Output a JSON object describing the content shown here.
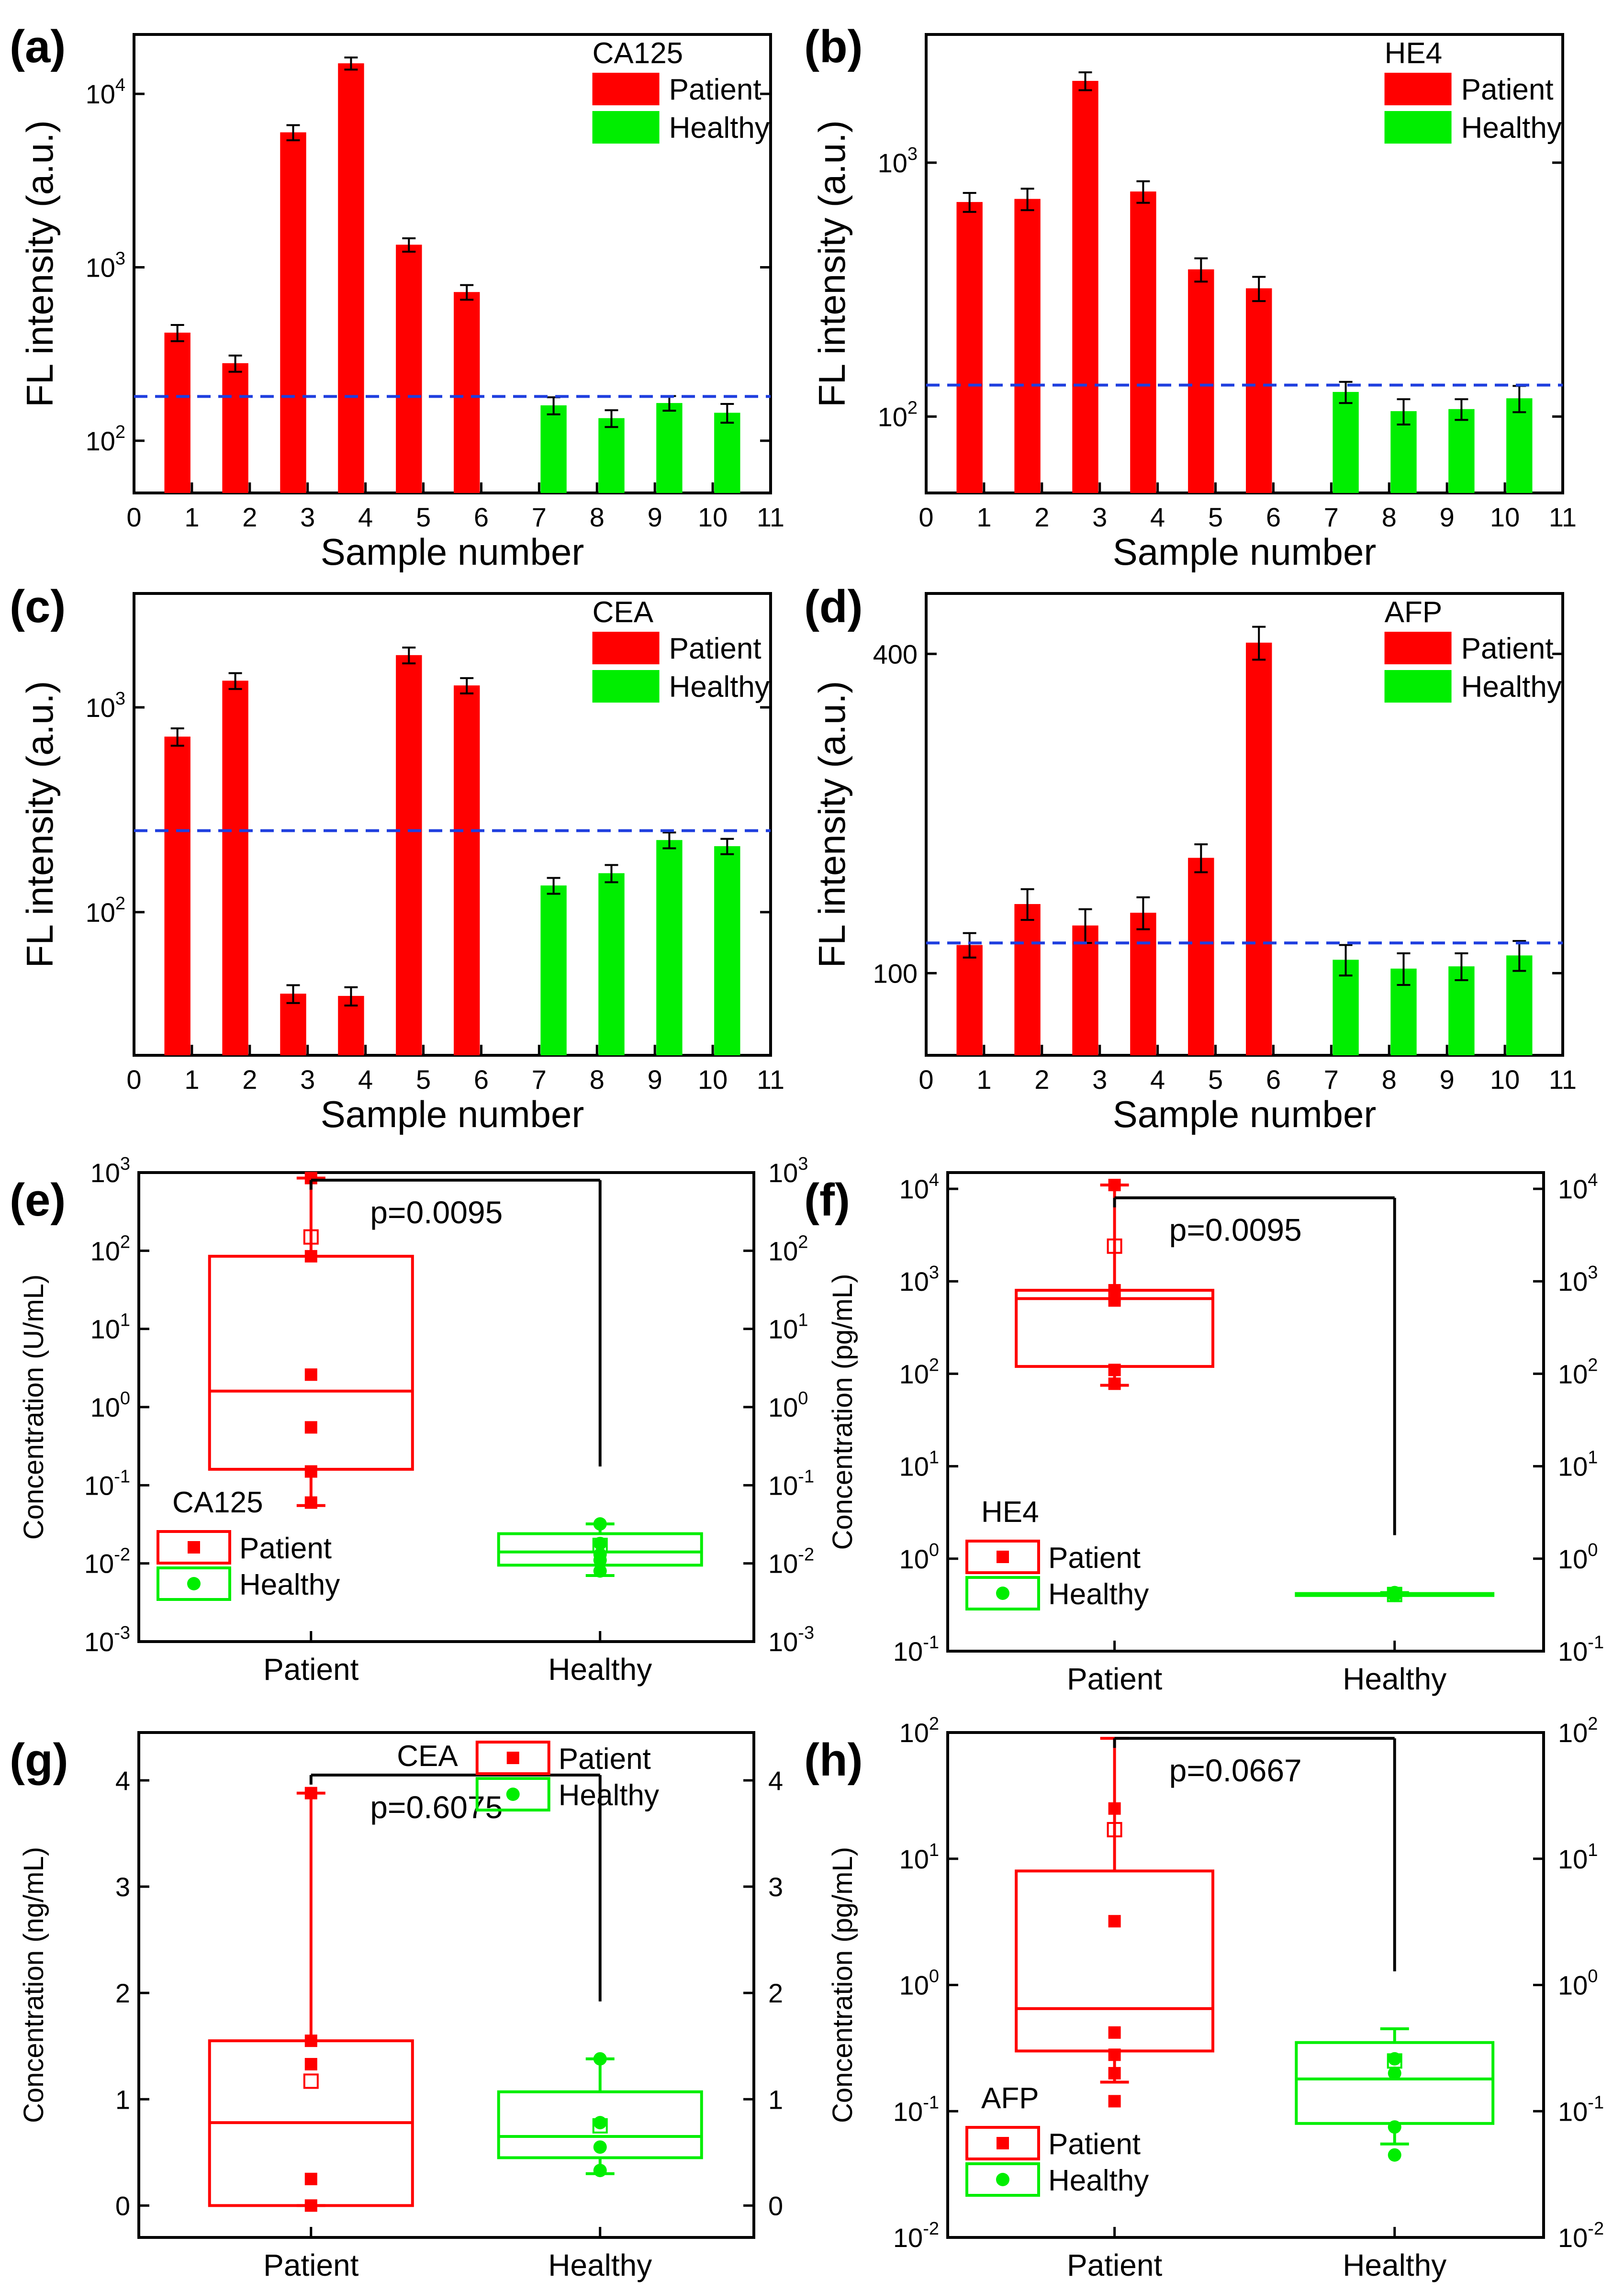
{
  "colors": {
    "patient": "#ff0000",
    "healthy": "#00ee00",
    "cutoff": "#1f3fdf",
    "axis": "#000000"
  },
  "chart_data": [
    {
      "panel": "(a)",
      "type": "bar",
      "scale": "log",
      "legend_title": "CA125",
      "legend": [
        "Patient",
        "Healthy"
      ],
      "xlabel": "Sample number",
      "ylabel": "FL intensity (a.u.)",
      "xlim": [
        0,
        11
      ],
      "ylim": [
        50,
        22000
      ],
      "xticks": [
        "0",
        "1",
        "2",
        "3",
        "4",
        "5",
        "6",
        "7",
        "8",
        "9",
        "10",
        "11"
      ],
      "yticks": [
        {
          "base": "10",
          "exp": "2",
          "v": 100
        },
        {
          "base": "10",
          "exp": "3",
          "v": 1000
        },
        {
          "base": "10",
          "exp": "4",
          "v": 10000
        }
      ],
      "samples": [
        1,
        2,
        3,
        4,
        5,
        6,
        7,
        8,
        9,
        10
      ],
      "values": [
        420,
        280,
        6000,
        15000,
        1350,
        720,
        160,
        135,
        165,
        145
      ],
      "errors": [
        45,
        30,
        600,
        1200,
        120,
        70,
        18,
        15,
        16,
        18
      ],
      "cutoff": 180
    },
    {
      "panel": "(b)",
      "type": "bar",
      "scale": "log",
      "legend_title": "HE4",
      "legend": [
        "Patient",
        "Healthy"
      ],
      "xlabel": "Sample number",
      "ylabel": "FL intensity (a.u.)",
      "xlim": [
        0,
        11
      ],
      "ylim": [
        50,
        3200
      ],
      "xticks": [
        "0",
        "1",
        "2",
        "3",
        "4",
        "5",
        "6",
        "7",
        "8",
        "9",
        "10",
        "11"
      ],
      "yticks": [
        {
          "base": "10",
          "exp": "2",
          "v": 100
        },
        {
          "base": "10",
          "exp": "3",
          "v": 1000
        }
      ],
      "samples": [
        1,
        2,
        3,
        4,
        5,
        6,
        7,
        8,
        9,
        10
      ],
      "values": [
        700,
        720,
        2100,
        770,
        380,
        320,
        125,
        105,
        107,
        118
      ],
      "errors": [
        60,
        70,
        170,
        75,
        40,
        35,
        12,
        12,
        10,
        14
      ],
      "cutoff": 133
    },
    {
      "panel": "(c)",
      "type": "bar",
      "scale": "log",
      "legend_title": "CEA",
      "legend": [
        "Patient",
        "Healthy"
      ],
      "xlabel": "Sample number",
      "ylabel": "FL intensity (a.u.)",
      "xlim": [
        0,
        11
      ],
      "ylim": [
        20,
        3600
      ],
      "xticks": [
        "0",
        "1",
        "2",
        "3",
        "4",
        "5",
        "6",
        "7",
        "8",
        "9",
        "10",
        "11"
      ],
      "yticks": [
        {
          "base": "10",
          "exp": "2",
          "v": 100
        },
        {
          "base": "10",
          "exp": "3",
          "v": 1000
        }
      ],
      "samples": [
        1,
        2,
        3,
        4,
        5,
        6,
        7,
        8,
        9,
        10
      ],
      "values": [
        720,
        1350,
        40,
        39,
        1800,
        1280,
        135,
        155,
        225,
        210
      ],
      "errors": [
        70,
        120,
        4,
        4,
        160,
        110,
        12,
        15,
        20,
        18
      ],
      "cutoff": 250
    },
    {
      "panel": "(d)",
      "type": "bar",
      "scale": "log",
      "legend_title": "AFP",
      "legend": [
        "Patient",
        "Healthy"
      ],
      "xlabel": "Sample number",
      "ylabel": "FL intensity (a.u.)",
      "xlim": [
        0,
        11
      ],
      "ylim": [
        70,
        520
      ],
      "xticks": [
        "0",
        "1",
        "2",
        "3",
        "4",
        "5",
        "6",
        "7",
        "8",
        "9",
        "10",
        "11"
      ],
      "yticks": [
        {
          "base": "100",
          "exp": "",
          "v": 100
        },
        {
          "base": "400",
          "exp": "",
          "v": 400
        }
      ],
      "samples": [
        1,
        2,
        3,
        4,
        5,
        6,
        7,
        8,
        9,
        10
      ],
      "values": [
        113,
        135,
        123,
        130,
        165,
        420,
        106,
        102,
        103,
        108
      ],
      "errors": [
        6,
        9,
        9,
        9,
        10,
        30,
        7,
        7,
        6,
        7
      ],
      "cutoff": 114
    },
    {
      "panel": "(e)",
      "type": "box",
      "scale": "log",
      "legend_title": "CA125",
      "legend": [
        "Patient",
        "Healthy"
      ],
      "ylabel": "Concentration (U/mL)",
      "ylim": [
        0.001,
        1000
      ],
      "yticks": [
        {
          "base": "10",
          "exp": "-3",
          "v": 0.001
        },
        {
          "base": "10",
          "exp": "-2",
          "v": 0.01
        },
        {
          "base": "10",
          "exp": "-1",
          "v": 0.1
        },
        {
          "base": "10",
          "exp": "0",
          "v": 1
        },
        {
          "base": "10",
          "exp": "1",
          "v": 10
        },
        {
          "base": "10",
          "exp": "2",
          "v": 100
        },
        {
          "base": "10",
          "exp": "3",
          "v": 1000
        }
      ],
      "categories": [
        "Patient",
        "Healthy"
      ],
      "p_value": "p=0.0095",
      "bracket_y": 800,
      "groups": [
        {
          "q1": 0.16,
          "median": 1.6,
          "q3": 85,
          "whisker_low": 0.055,
          "whisker_high": 850,
          "points": [
            85,
            2.6,
            0.55,
            0.15,
            0.06,
            850
          ],
          "mean": 150
        },
        {
          "q1": 0.0095,
          "median": 0.014,
          "q3": 0.024,
          "whisker_low": 0.007,
          "whisker_high": 0.032,
          "points": [
            0.032,
            0.018,
            0.013,
            0.011,
            0.008
          ],
          "mean": 0.017
        }
      ]
    },
    {
      "panel": "(f)",
      "type": "box",
      "scale": "log",
      "legend_title": "HE4",
      "legend": [
        "Patient",
        "Healthy"
      ],
      "ylabel": "Concentration (pg/mL)",
      "ylim": [
        0.1,
        15000
      ],
      "yticks": [
        {
          "base": "10",
          "exp": "-1",
          "v": 0.1
        },
        {
          "base": "10",
          "exp": "0",
          "v": 1
        },
        {
          "base": "10",
          "exp": "1",
          "v": 10
        },
        {
          "base": "10",
          "exp": "2",
          "v": 100
        },
        {
          "base": "10",
          "exp": "3",
          "v": 1000
        },
        {
          "base": "10",
          "exp": "4",
          "v": 10000
        }
      ],
      "categories": [
        "Patient",
        "Healthy"
      ],
      "p_value": "p=0.0095",
      "bracket_y": 8000,
      "groups": [
        {
          "q1": 120,
          "median": 650,
          "q3": 800,
          "whisker_low": 75,
          "whisker_high": 11000,
          "points": [
            11000,
            800,
            700,
            620,
            110,
            78
          ],
          "mean": 2400
        },
        {
          "q1": 0.4,
          "median": 0.41,
          "q3": 0.42,
          "whisker_low": 0.4,
          "whisker_high": 0.43,
          "points": [
            0.43,
            0.41,
            0.4
          ],
          "mean": 0.41
        }
      ]
    },
    {
      "panel": "(g)",
      "type": "box",
      "scale": "linear",
      "legend_title": "CEA",
      "legend": [
        "Patient",
        "Healthy"
      ],
      "ylabel": "Concentration (ng/mL)",
      "ylim": [
        -0.3,
        4.45
      ],
      "yticks": [
        {
          "base": "0",
          "exp": "",
          "v": 0
        },
        {
          "base": "1",
          "exp": "",
          "v": 1
        },
        {
          "base": "2",
          "exp": "",
          "v": 2
        },
        {
          "base": "3",
          "exp": "",
          "v": 3
        },
        {
          "base": "4",
          "exp": "",
          "v": 4
        }
      ],
      "categories": [
        "Patient",
        "Healthy"
      ],
      "p_value": "p=0.6075",
      "bracket_y": 4.05,
      "groups": [
        {
          "q1": 0.0,
          "median": 0.78,
          "q3": 1.55,
          "whisker_low": 0.0,
          "whisker_high": 3.88,
          "points": [
            3.88,
            1.55,
            1.33,
            0.25,
            0.0
          ],
          "mean": 1.17
        },
        {
          "q1": 0.45,
          "median": 0.65,
          "q3": 1.07,
          "whisker_low": 0.3,
          "whisker_high": 1.38,
          "points": [
            1.38,
            0.78,
            0.55,
            0.33
          ],
          "mean": 0.75
        }
      ]
    },
    {
      "panel": "(h)",
      "type": "box",
      "scale": "log",
      "legend_title": "AFP",
      "legend": [
        "Patient",
        "Healthy"
      ],
      "ylabel": "Concentration (pg/mL)",
      "ylim": [
        0.01,
        100
      ],
      "yticks": [
        {
          "base": "10",
          "exp": "-2",
          "v": 0.01
        },
        {
          "base": "10",
          "exp": "-1",
          "v": 0.1
        },
        {
          "base": "10",
          "exp": "0",
          "v": 1
        },
        {
          "base": "10",
          "exp": "1",
          "v": 10
        },
        {
          "base": "10",
          "exp": "2",
          "v": 100
        }
      ],
      "categories": [
        "Patient",
        "Healthy"
      ],
      "p_value": "p=0.0667",
      "bracket_y": 90,
      "groups": [
        {
          "q1": 0.3,
          "median": 0.65,
          "q3": 8,
          "whisker_low": 0.17,
          "whisker_high": 90,
          "points": [
            25,
            3.2,
            0.42,
            0.28,
            0.2,
            0.12
          ],
          "mean": 17
        },
        {
          "q1": 0.08,
          "median": 0.18,
          "q3": 0.35,
          "whisker_low": 0.055,
          "whisker_high": 0.45,
          "points": [
            0.26,
            0.2,
            0.075,
            0.045
          ],
          "mean": 0.25
        }
      ]
    }
  ]
}
